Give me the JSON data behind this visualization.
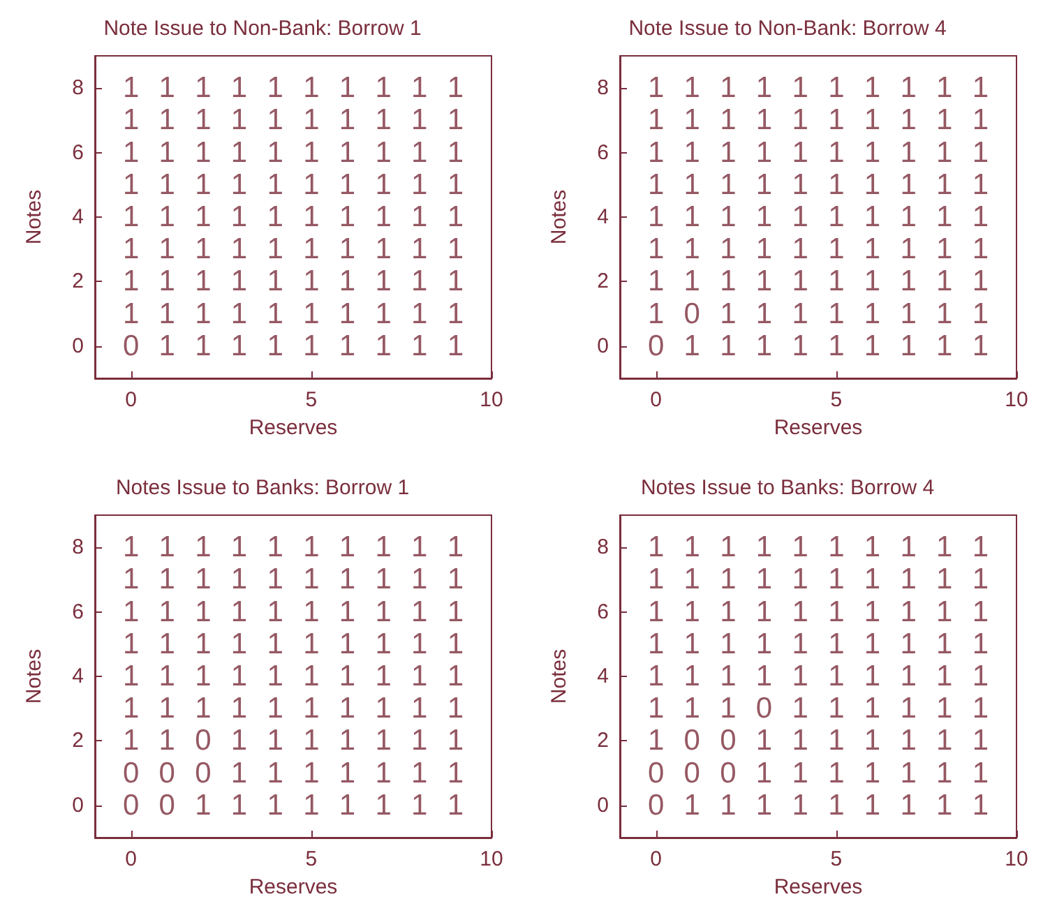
{
  "chart_data": [
    {
      "type": "heatmap",
      "title": "Note Issue to Non-Bank: Borrow 1",
      "xlabel": "Reserves",
      "ylabel": "Notes",
      "x": [
        0,
        1,
        2,
        3,
        4,
        5,
        6,
        7,
        8,
        9
      ],
      "y": [
        8,
        7,
        6,
        5,
        4,
        3,
        2,
        1,
        0
      ],
      "data_labels": true,
      "color": "#7a2e3c",
      "grid": false,
      "xlim": [
        -1,
        10
      ],
      "ylim": [
        -1,
        9
      ],
      "xticks": [
        0,
        5,
        10
      ],
      "yticks": [
        0,
        2,
        4,
        6,
        8
      ],
      "cells": [
        [
          1,
          1,
          1,
          1,
          1,
          1,
          1,
          1,
          1,
          1
        ],
        [
          1,
          1,
          1,
          1,
          1,
          1,
          1,
          1,
          1,
          1
        ],
        [
          1,
          1,
          1,
          1,
          1,
          1,
          1,
          1,
          1,
          1
        ],
        [
          1,
          1,
          1,
          1,
          1,
          1,
          1,
          1,
          1,
          1
        ],
        [
          1,
          1,
          1,
          1,
          1,
          1,
          1,
          1,
          1,
          1
        ],
        [
          1,
          1,
          1,
          1,
          1,
          1,
          1,
          1,
          1,
          1
        ],
        [
          1,
          1,
          1,
          1,
          1,
          1,
          1,
          1,
          1,
          1
        ],
        [
          1,
          1,
          1,
          1,
          1,
          1,
          1,
          1,
          1,
          1
        ],
        [
          0,
          1,
          1,
          1,
          1,
          1,
          1,
          1,
          1,
          1
        ]
      ]
    },
    {
      "type": "heatmap",
      "title": "Note Issue to Non-Bank: Borrow 4",
      "xlabel": "Reserves",
      "ylabel": "Notes",
      "x": [
        0,
        1,
        2,
        3,
        4,
        5,
        6,
        7,
        8,
        9
      ],
      "y": [
        8,
        7,
        6,
        5,
        4,
        3,
        2,
        1,
        0
      ],
      "data_labels": true,
      "color": "#7a2e3c",
      "grid": false,
      "xlim": [
        -1,
        10
      ],
      "ylim": [
        -1,
        9
      ],
      "xticks": [
        0,
        5,
        10
      ],
      "yticks": [
        0,
        2,
        4,
        6,
        8
      ],
      "cells": [
        [
          1,
          1,
          1,
          1,
          1,
          1,
          1,
          1,
          1,
          1
        ],
        [
          1,
          1,
          1,
          1,
          1,
          1,
          1,
          1,
          1,
          1
        ],
        [
          1,
          1,
          1,
          1,
          1,
          1,
          1,
          1,
          1,
          1
        ],
        [
          1,
          1,
          1,
          1,
          1,
          1,
          1,
          1,
          1,
          1
        ],
        [
          1,
          1,
          1,
          1,
          1,
          1,
          1,
          1,
          1,
          1
        ],
        [
          1,
          1,
          1,
          1,
          1,
          1,
          1,
          1,
          1,
          1
        ],
        [
          1,
          1,
          1,
          1,
          1,
          1,
          1,
          1,
          1,
          1
        ],
        [
          1,
          0,
          1,
          1,
          1,
          1,
          1,
          1,
          1,
          1
        ],
        [
          0,
          1,
          1,
          1,
          1,
          1,
          1,
          1,
          1,
          1
        ]
      ]
    },
    {
      "type": "heatmap",
      "title": "Notes Issue to Banks: Borrow 1",
      "xlabel": "Reserves",
      "ylabel": "Notes",
      "x": [
        0,
        1,
        2,
        3,
        4,
        5,
        6,
        7,
        8,
        9
      ],
      "y": [
        8,
        7,
        6,
        5,
        4,
        3,
        2,
        1,
        0
      ],
      "data_labels": true,
      "color": "#7a2e3c",
      "grid": false,
      "xlim": [
        -1,
        10
      ],
      "ylim": [
        -1,
        9
      ],
      "xticks": [
        0,
        5,
        10
      ],
      "yticks": [
        0,
        2,
        4,
        6,
        8
      ],
      "cells": [
        [
          1,
          1,
          1,
          1,
          1,
          1,
          1,
          1,
          1,
          1
        ],
        [
          1,
          1,
          1,
          1,
          1,
          1,
          1,
          1,
          1,
          1
        ],
        [
          1,
          1,
          1,
          1,
          1,
          1,
          1,
          1,
          1,
          1
        ],
        [
          1,
          1,
          1,
          1,
          1,
          1,
          1,
          1,
          1,
          1
        ],
        [
          1,
          1,
          1,
          1,
          1,
          1,
          1,
          1,
          1,
          1
        ],
        [
          1,
          1,
          1,
          1,
          1,
          1,
          1,
          1,
          1,
          1
        ],
        [
          1,
          1,
          0,
          1,
          1,
          1,
          1,
          1,
          1,
          1
        ],
        [
          0,
          0,
          0,
          1,
          1,
          1,
          1,
          1,
          1,
          1
        ],
        [
          0,
          0,
          1,
          1,
          1,
          1,
          1,
          1,
          1,
          1
        ]
      ]
    },
    {
      "type": "heatmap",
      "title": "Notes Issue to Banks: Borrow 4",
      "xlabel": "Reserves",
      "ylabel": "Notes",
      "x": [
        0,
        1,
        2,
        3,
        4,
        5,
        6,
        7,
        8,
        9
      ],
      "y": [
        8,
        7,
        6,
        5,
        4,
        3,
        2,
        1,
        0
      ],
      "data_labels": true,
      "color": "#7a2e3c",
      "grid": false,
      "xlim": [
        -1,
        10
      ],
      "ylim": [
        -1,
        9
      ],
      "xticks": [
        0,
        5,
        10
      ],
      "yticks": [
        0,
        2,
        4,
        6,
        8
      ],
      "cells": [
        [
          1,
          1,
          1,
          1,
          1,
          1,
          1,
          1,
          1,
          1
        ],
        [
          1,
          1,
          1,
          1,
          1,
          1,
          1,
          1,
          1,
          1
        ],
        [
          1,
          1,
          1,
          1,
          1,
          1,
          1,
          1,
          1,
          1
        ],
        [
          1,
          1,
          1,
          1,
          1,
          1,
          1,
          1,
          1,
          1
        ],
        [
          1,
          1,
          1,
          1,
          1,
          1,
          1,
          1,
          1,
          1
        ],
        [
          1,
          1,
          1,
          0,
          1,
          1,
          1,
          1,
          1,
          1
        ],
        [
          1,
          0,
          0,
          1,
          1,
          1,
          1,
          1,
          1,
          1
        ],
        [
          0,
          0,
          0,
          1,
          1,
          1,
          1,
          1,
          1,
          1
        ],
        [
          0,
          1,
          1,
          1,
          1,
          1,
          1,
          1,
          1,
          1
        ]
      ]
    }
  ]
}
